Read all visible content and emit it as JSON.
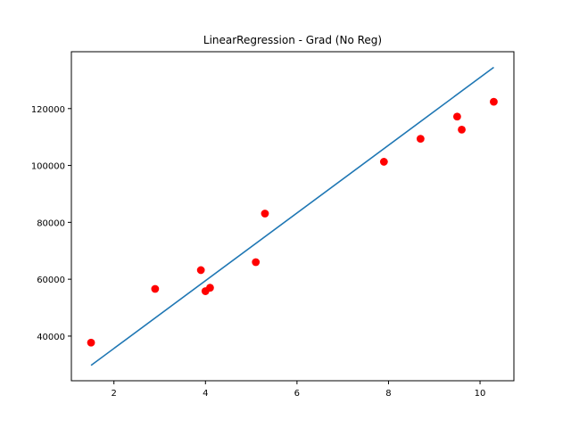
{
  "chart_data": {
    "type": "scatter",
    "title": "LinearRegression - Grad (No Reg)",
    "xlabel": "",
    "ylabel": "",
    "xlim": [
      1.07,
      10.74
    ],
    "ylim": [
      24300,
      140000
    ],
    "x_ticks": [
      2,
      4,
      6,
      8,
      10
    ],
    "y_ticks": [
      40000,
      60000,
      80000,
      100000,
      120000
    ],
    "grid": false,
    "point_color": "#ff0000",
    "line_color": "#1f77b4",
    "points": [
      {
        "x": 1.5,
        "y": 37700
      },
      {
        "x": 2.9,
        "y": 56600
      },
      {
        "x": 3.9,
        "y": 63200
      },
      {
        "x": 4.0,
        "y": 55800
      },
      {
        "x": 4.1,
        "y": 57000
      },
      {
        "x": 5.1,
        "y": 66000
      },
      {
        "x": 5.3,
        "y": 83100
      },
      {
        "x": 7.9,
        "y": 101300
      },
      {
        "x": 8.7,
        "y": 109400
      },
      {
        "x": 9.5,
        "y": 117200
      },
      {
        "x": 9.6,
        "y": 112600
      },
      {
        "x": 10.3,
        "y": 122400
      }
    ],
    "fit_line": [
      {
        "x": 1.5,
        "y": 29700
      },
      {
        "x": 10.3,
        "y": 134500
      }
    ]
  }
}
